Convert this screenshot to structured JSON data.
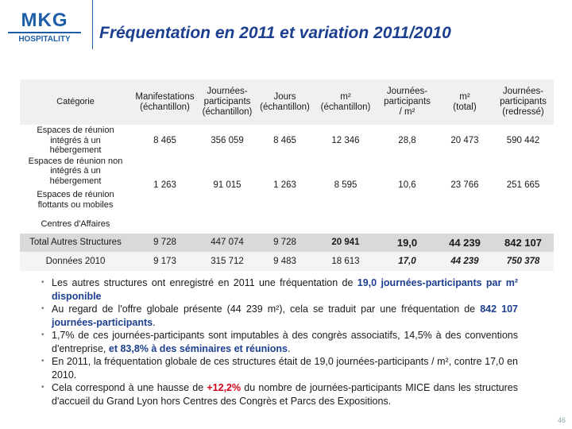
{
  "header": {
    "logo": "MKG",
    "logo_sub": "HOSPITALITY",
    "title": "Fréquentation en 2011 et variation 2011/2010"
  },
  "table": {
    "columns": [
      "Catégorie",
      "Manifestations\n(échantillon)",
      "Journées-\nparticipants\n(échantillon)",
      "Jours\n(échantillon)",
      "m²\n(échantillon)",
      "Journées-\nparticipants\n/ m²",
      "m²\n(total)",
      "Journées-\nparticipants\n(redressé)"
    ],
    "groups": [
      {
        "labels": [
          "Espaces de réunion\nintégrés à un\nhébergement"
        ],
        "cells": [
          "8 465",
          "356 059",
          "8 465",
          "12 346",
          "28,8",
          "20 473",
          "590 442"
        ]
      },
      {
        "labels": [
          "Espaces de réunion non\nintégrés à un\nhébergement",
          "Espaces de réunion\nflottants ou mobiles"
        ],
        "cells": [
          "1 263",
          "91 015",
          "1 263",
          "8 595",
          "10,6",
          "23 766",
          "251 665"
        ]
      },
      {
        "labels": [
          "Centres d'Affaires"
        ],
        "cells": []
      }
    ],
    "total": {
      "label": "Total Autres Structures",
      "cells": [
        "9 728",
        "447 074",
        "9 728",
        "20 941",
        "19,0",
        "44 239",
        "842 107"
      ]
    },
    "previous": {
      "label": "Données 2010",
      "cells": [
        "9 173",
        "315 712",
        "9 483",
        "18 613",
        "17,0",
        "44 239",
        "750 378"
      ]
    }
  },
  "bullets": [
    [
      "Les autres structures ont enregistré en 2011 une fréquentation de ",
      {
        "text": "19,0 journées-participants par m² disponible",
        "style": "bold"
      }
    ],
    [
      "Au regard de l'offre globale présente (44 239 m²), cela se traduit par une fréquentation de ",
      {
        "text": "842 107 journées-participants",
        "style": "bold"
      },
      "."
    ],
    [
      "1,7% de ces journées-participants sont imputables à des congrès associatifs, 14,5% à des conventions d'entreprise, ",
      {
        "text": "et 83,8% à des séminaires et réunions",
        "style": "bold"
      },
      "."
    ],
    [
      "En 2011, la fréquentation globale de ces structures était de 19,0 journées-participants / m², contre 17,0 en 2010."
    ],
    [
      "Cela correspond à une hausse de ",
      {
        "text": "+12,2%",
        "style": "red"
      },
      " du nombre de journées-participants MICE dans les structures d'accueil du Grand Lyon hors Centres des Congrès et Parcs des Expositions."
    ]
  ],
  "page_number": "46"
}
